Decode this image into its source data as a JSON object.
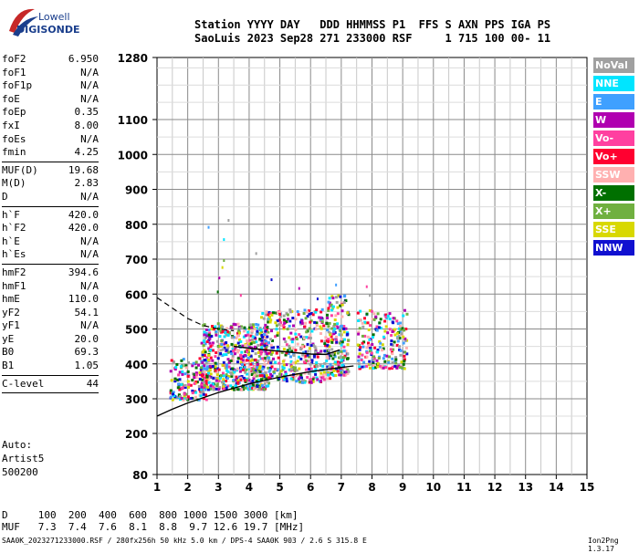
{
  "logo": {
    "line1": "Lowell",
    "line2": "DIGISONDE"
  },
  "header": {
    "line1": "Station YYYY DAY   DDD HHMMSS P1  FFS S AXN PPS IGA PS",
    "line2": "SaoLuis 2023 Sep28 271 233000 RSF     1 715 100 00- 11"
  },
  "params": [
    {
      "k": "foF2",
      "v": "6.950"
    },
    {
      "k": "foF1",
      "v": "N/A"
    },
    {
      "k": "foF1p",
      "v": "N/A"
    },
    {
      "k": "foE",
      "v": "N/A"
    },
    {
      "k": "foEp",
      "v": "0.35"
    },
    {
      "k": "fxI",
      "v": "8.00"
    },
    {
      "k": "foEs",
      "v": "N/A"
    },
    {
      "k": "fmin",
      "v": "4.25"
    },
    {
      "sep": true
    },
    {
      "k": "MUF(D)",
      "v": "19.68"
    },
    {
      "k": "M(D)",
      "v": "2.83"
    },
    {
      "k": "D",
      "v": "N/A"
    },
    {
      "sep": true
    },
    {
      "k": "h`F",
      "v": "420.0"
    },
    {
      "k": "h`F2",
      "v": "420.0"
    },
    {
      "k": "h`E",
      "v": "N/A"
    },
    {
      "k": "h`Es",
      "v": "N/A"
    },
    {
      "sep": true
    },
    {
      "k": "hmF2",
      "v": "394.6"
    },
    {
      "k": "hmF1",
      "v": "N/A"
    },
    {
      "k": "hmE",
      "v": "110.0"
    },
    {
      "k": "yF2",
      "v": "54.1"
    },
    {
      "k": "yF1",
      "v": "N/A"
    },
    {
      "k": "yE",
      "v": "20.0"
    },
    {
      "k": "B0",
      "v": "69.3"
    },
    {
      "k": "B1",
      "v": "1.05"
    },
    {
      "sep": true
    },
    {
      "k": "C-level",
      "v": "44"
    },
    {
      "sep": true
    }
  ],
  "auto": {
    "l1": "Auto:",
    "l2": "Artist5",
    "l3": "500200"
  },
  "legend": [
    {
      "label": "NoVal",
      "color": "#a0a0a0"
    },
    {
      "label": "NNE",
      "color": "#00e5ff"
    },
    {
      "label": "E",
      "color": "#3fa0ff"
    },
    {
      "label": "W",
      "color": "#b000b0"
    },
    {
      "label": "Vo-",
      "color": "#ff40a0"
    },
    {
      "label": "Vo+",
      "color": "#ff0030"
    },
    {
      "label": "SSW",
      "color": "#ffb0b0"
    },
    {
      "label": "X-",
      "color": "#007000"
    },
    {
      "label": "X+",
      "color": "#70b040"
    },
    {
      "label": "SSE",
      "color": "#d8d800"
    },
    {
      "label": "NNW",
      "color": "#1010d0"
    }
  ],
  "muf_table": {
    "d_line": "D     100  200  400  600  800 1000 1500 3000 [km]",
    "muf_line": "MUF   7.3  7.4  7.6  8.1  8.8  9.7 12.6 19.7 [MHz]"
  },
  "footer": "SAA0K_2023271233000.RSF / 280fx256h 50 kHz 5.0 km / DPS-4 SAA0K 903 / 2.6 S 315.8 E",
  "version": "Ion2Png 1.3.17",
  "chart_data": {
    "type": "scatter",
    "xlim": [
      1,
      15
    ],
    "ylim": [
      80,
      1280
    ],
    "xticks": [
      1,
      2,
      3,
      4,
      5,
      6,
      7,
      8,
      9,
      10,
      11,
      12,
      13,
      14,
      15
    ],
    "yticks": [
      80,
      200,
      300,
      400,
      500,
      600,
      700,
      800,
      900,
      1000,
      1100,
      1280
    ],
    "grid": true,
    "echo_clusters": [
      {
        "x": [
          1.4,
          2.6
        ],
        "y": [
          300,
          420
        ],
        "density": 160
      },
      {
        "x": [
          2.4,
          4.6
        ],
        "y": [
          330,
          520
        ],
        "density": 600
      },
      {
        "x": [
          4.3,
          6.6
        ],
        "y": [
          350,
          560
        ],
        "density": 400
      },
      {
        "x": [
          6.5,
          7.2
        ],
        "y": [
          370,
          600
        ],
        "density": 180
      },
      {
        "x": [
          7.5,
          9.1
        ],
        "y": [
          390,
          560
        ],
        "density": 220
      }
    ],
    "scattered_echoes": [
      {
        "x": 2.65,
        "y": 795
      },
      {
        "x": 3.3,
        "y": 815
      },
      {
        "x": 3.15,
        "y": 760
      },
      {
        "x": 3.15,
        "y": 700
      },
      {
        "x": 4.2,
        "y": 720
      },
      {
        "x": 3.1,
        "y": 680
      },
      {
        "x": 4.7,
        "y": 645
      },
      {
        "x": 3.0,
        "y": 650
      },
      {
        "x": 6.8,
        "y": 630
      },
      {
        "x": 7.8,
        "y": 625
      },
      {
        "x": 2.95,
        "y": 610
      },
      {
        "x": 5.6,
        "y": 620
      },
      {
        "x": 3.7,
        "y": 600
      },
      {
        "x": 6.2,
        "y": 590
      },
      {
        "x": 7.9,
        "y": 600
      }
    ],
    "profile_lower": [
      [
        1.0,
        250
      ],
      [
        1.5,
        270
      ],
      [
        2.0,
        288
      ],
      [
        3.0,
        318
      ],
      [
        4.0,
        343
      ],
      [
        5.0,
        362
      ],
      [
        6.0,
        378
      ],
      [
        7.0,
        390
      ],
      [
        7.4,
        394
      ]
    ],
    "profile_upper": [
      [
        1.0,
        590
      ],
      [
        1.5,
        560
      ],
      [
        2.0,
        530
      ],
      [
        2.5,
        510
      ],
      [
        3.0,
        500
      ],
      [
        3.5,
        495
      ]
    ],
    "trace_f2": [
      [
        3.5,
        450
      ],
      [
        4.5,
        440
      ],
      [
        5.5,
        432
      ],
      [
        6.0,
        428
      ],
      [
        6.5,
        427
      ],
      [
        6.95,
        440
      ]
    ],
    "colors": [
      "#a0a0a0",
      "#00e5ff",
      "#3fa0ff",
      "#b000b0",
      "#ff40a0",
      "#ff0030",
      "#ffb0b0",
      "#007000",
      "#70b040",
      "#d8d800",
      "#1010d0"
    ]
  }
}
